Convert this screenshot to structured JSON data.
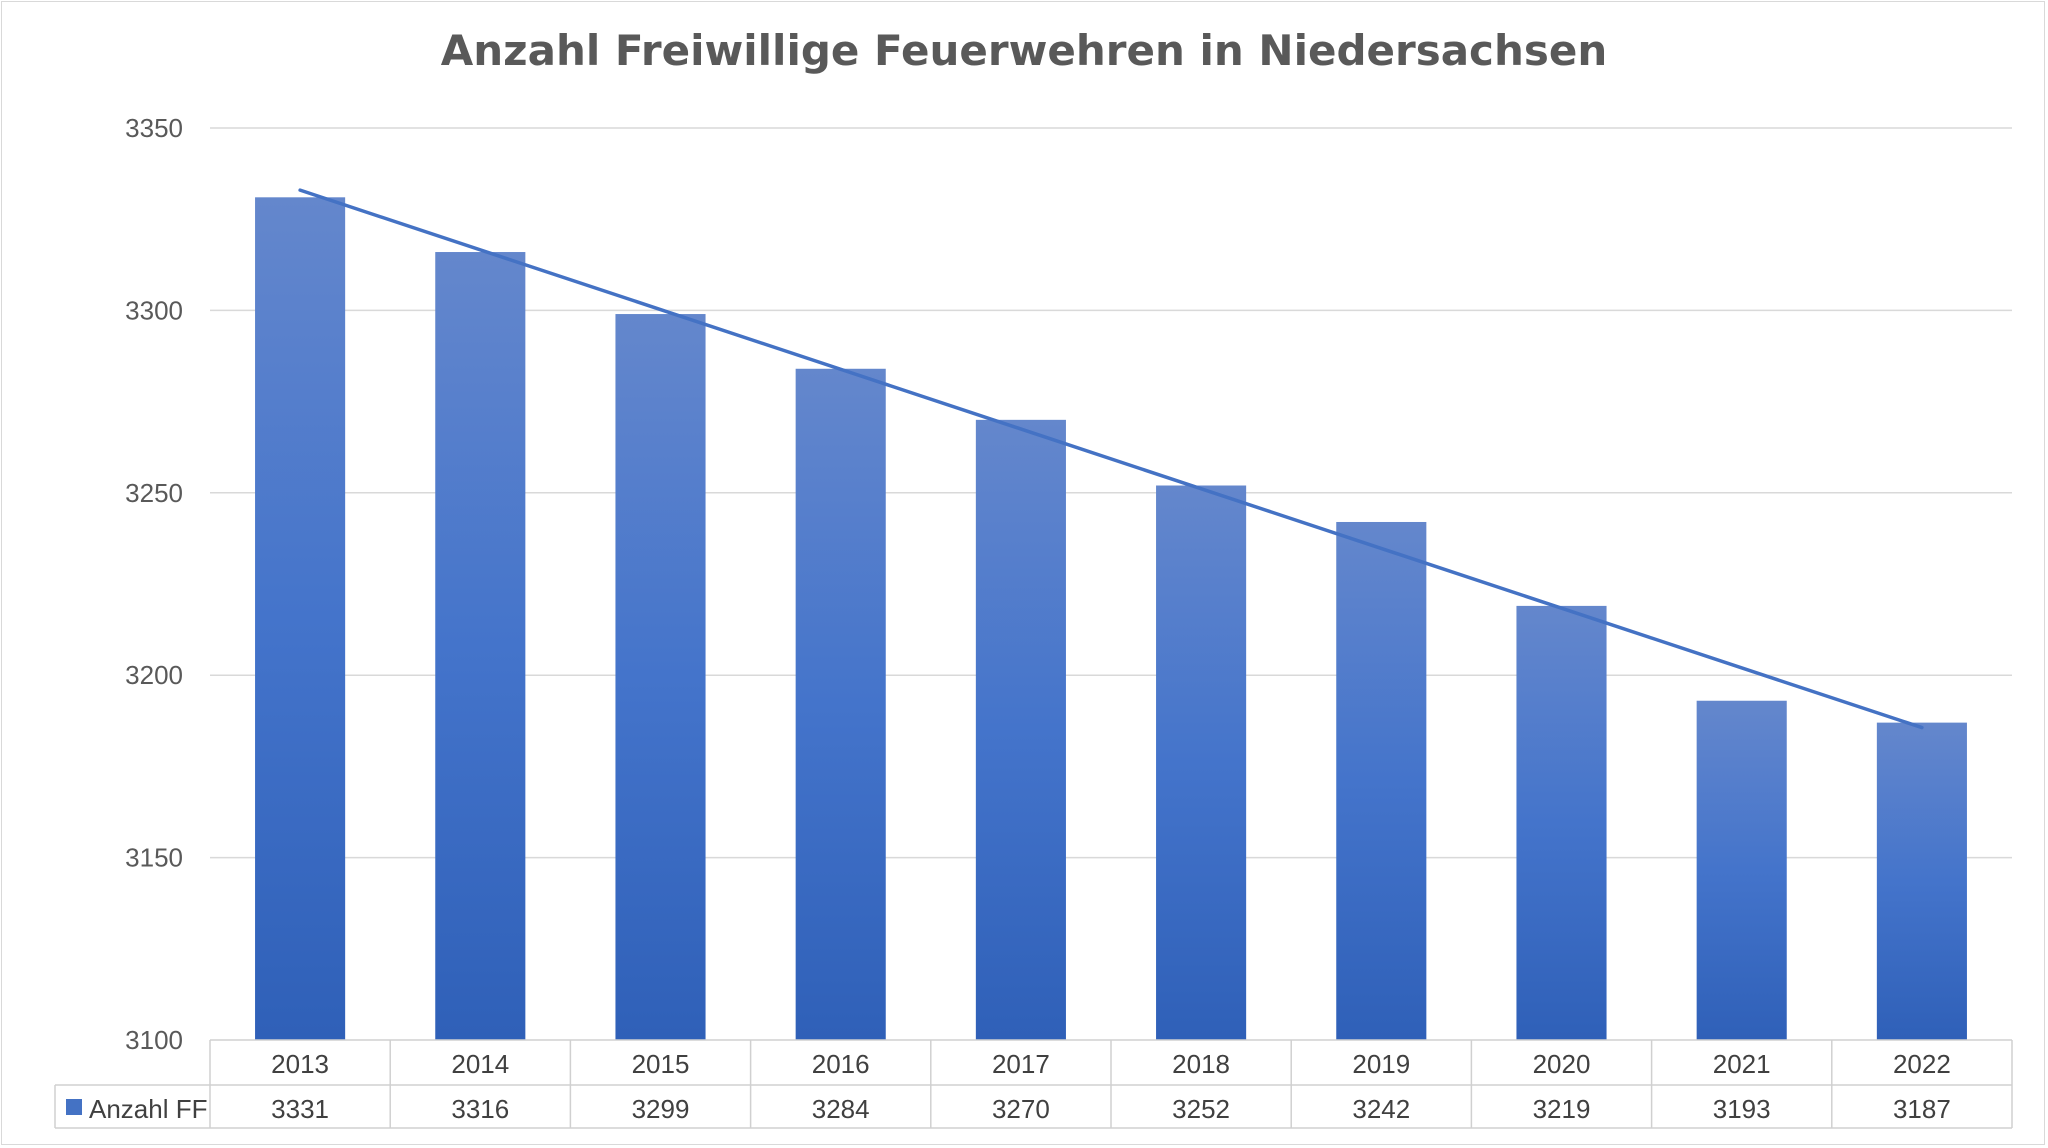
{
  "chart_data": {
    "type": "bar",
    "title": "Anzahl Freiwillige Feuerwehren in Niedersachsen",
    "categories": [
      "2013",
      "2014",
      "2015",
      "2016",
      "2017",
      "2018",
      "2019",
      "2020",
      "2021",
      "2022"
    ],
    "series": [
      {
        "name": "Anzahl FF",
        "values": [
          3331,
          3316,
          3299,
          3284,
          3270,
          3252,
          3242,
          3219,
          3193,
          3187
        ],
        "value_labels": [
          "3331",
          "3316",
          "3299",
          "3284",
          "3270",
          "3252",
          "3242",
          "3219",
          "3193",
          "3187"
        ],
        "color": "#4472c4"
      }
    ],
    "trendline": {
      "type": "linear",
      "color": "#4472c4"
    },
    "yticks": [
      "3100",
      "3150",
      "3200",
      "3250",
      "3300",
      "3350"
    ],
    "ylim": [
      3100,
      3350
    ],
    "grid": true,
    "legend": "data-table",
    "xlabel": "",
    "ylabel": ""
  }
}
